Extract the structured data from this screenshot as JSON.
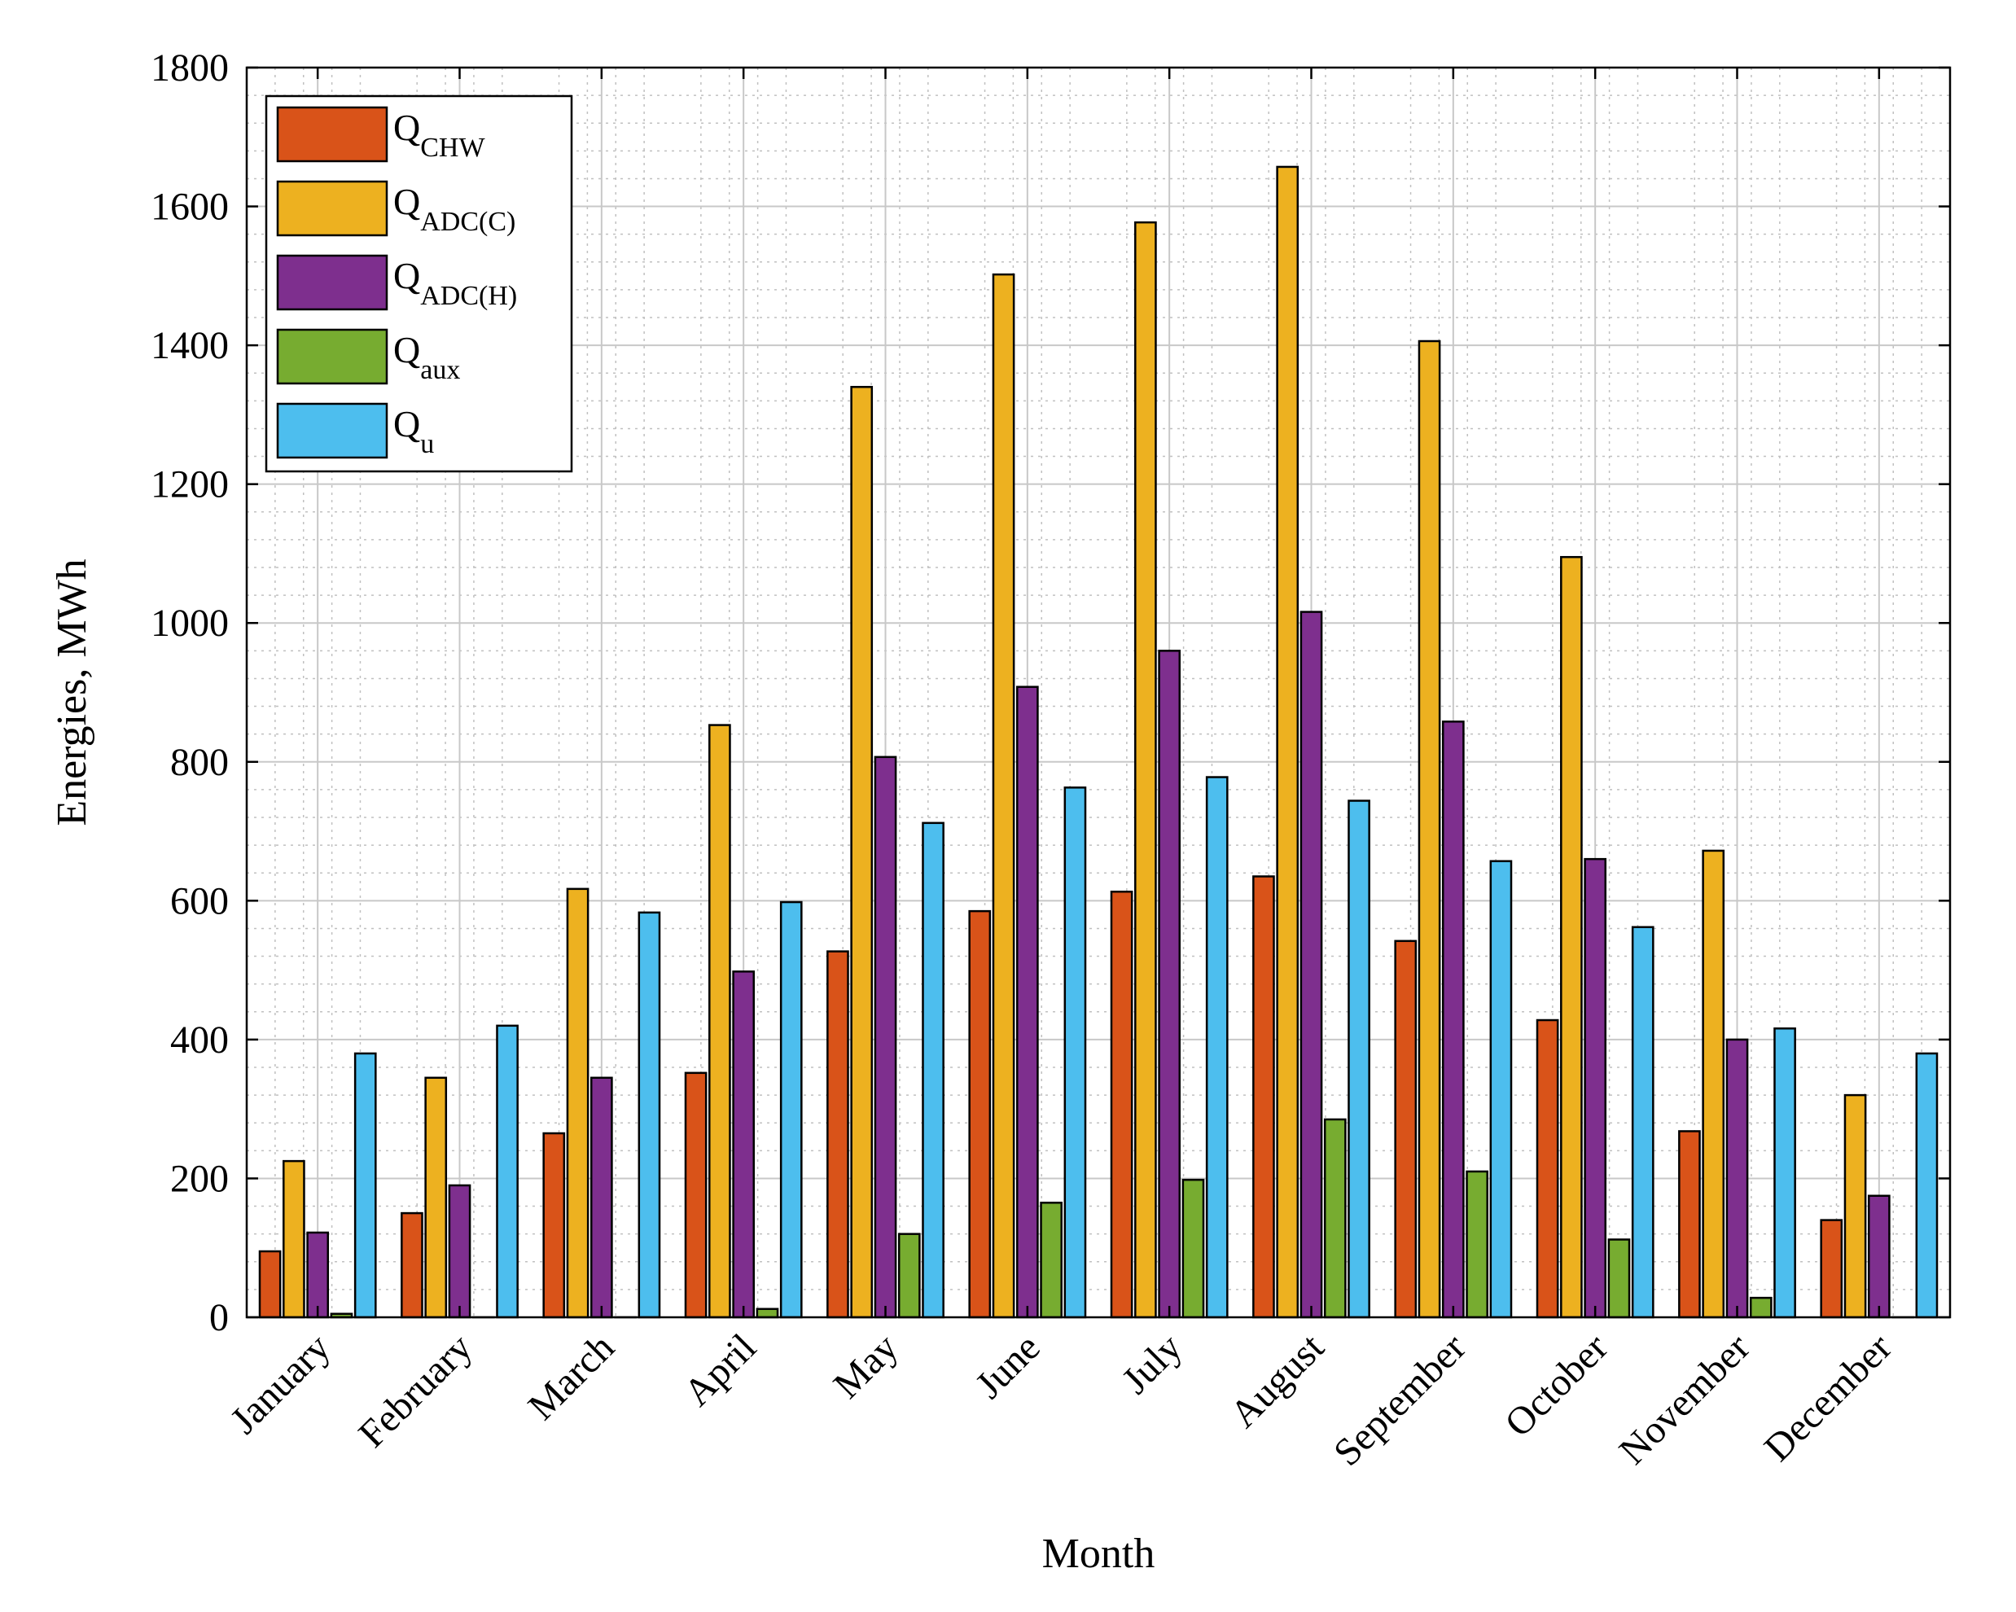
{
  "chart_data": {
    "type": "bar",
    "xlabel": "Month",
    "ylabel": "Energies, MWh",
    "ylim": [
      0,
      1800
    ],
    "yticks": [
      0,
      200,
      400,
      600,
      800,
      1000,
      1200,
      1400,
      1600,
      1800
    ],
    "grid": true,
    "minor_grid": true,
    "legend_position": "top-left",
    "categories": [
      "January",
      "February",
      "March",
      "April",
      "May",
      "June",
      "July",
      "August",
      "September",
      "October",
      "November",
      "December"
    ],
    "series": [
      {
        "name": "Q",
        "subscript": "CHW",
        "color": "#D95319",
        "values": [
          95,
          150,
          265,
          352,
          527,
          585,
          613,
          635,
          542,
          428,
          268,
          140
        ]
      },
      {
        "name": "Q",
        "subscript": "ADC(C)",
        "color": "#EDB120",
        "values": [
          225,
          345,
          617,
          853,
          1340,
          1502,
          1577,
          1657,
          1406,
          1095,
          672,
          320
        ]
      },
      {
        "name": "Q",
        "subscript": "ADC(H)",
        "color": "#7E2F8E",
        "values": [
          122,
          190,
          345,
          498,
          807,
          908,
          960,
          1016,
          858,
          660,
          400,
          175
        ]
      },
      {
        "name": "Q",
        "subscript": "aux",
        "color": "#77AC30",
        "values": [
          5,
          0,
          0,
          12,
          120,
          165,
          198,
          285,
          210,
          112,
          28,
          0
        ]
      },
      {
        "name": "Q",
        "subscript": "u",
        "color": "#4DBEEE",
        "values": [
          380,
          420,
          583,
          598,
          712,
          763,
          778,
          744,
          657,
          562,
          416,
          380
        ]
      }
    ]
  }
}
